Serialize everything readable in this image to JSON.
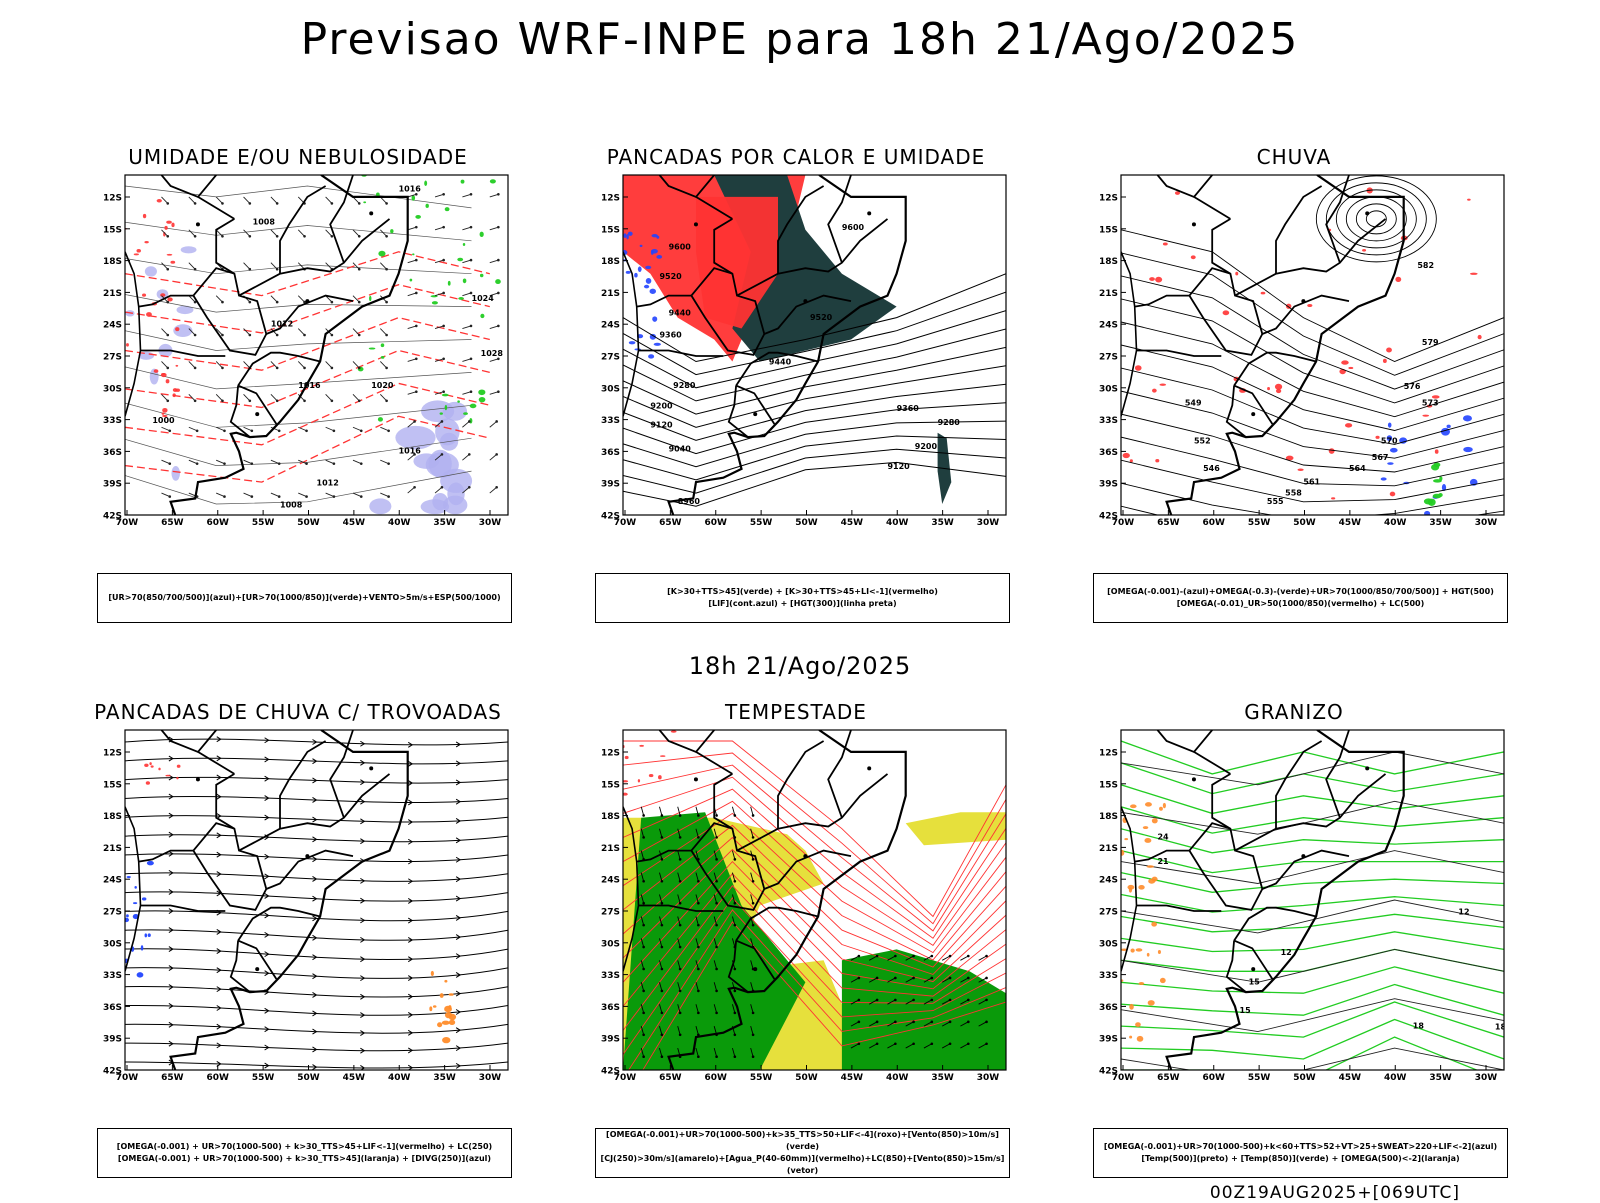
{
  "header": {
    "title": "Previsao WRF-INPE  para 18h 21/Ago/2025"
  },
  "middle": {
    "title": "18h 21/Ago/2025"
  },
  "footer": {
    "run": "00Z19AUG2025+[069UTC]"
  },
  "axes": {
    "lat_labels": [
      "12S",
      "15S",
      "18S",
      "21S",
      "24S",
      "27S",
      "30S",
      "33S",
      "36S",
      "39S",
      "42S"
    ],
    "lon_labels": [
      "70W",
      "65W",
      "60W",
      "55W",
      "50W",
      "45W",
      "40W",
      "35W",
      "30W"
    ]
  },
  "panels": [
    {
      "title": "UMIDADE E/OU NEBULOSIDADE",
      "caption": [
        "[UR>70(850/700/500)](azul)+[UR>70(1000/850)](verde)+VENTO>5m/s+ESP(500/1000)"
      ],
      "contour_labels": [
        "1008",
        "1016",
        "1024",
        "1012",
        "1016",
        "1020",
        "1016",
        "1012",
        "1008",
        "1000",
        "1028"
      ]
    },
    {
      "title": "PANCADAS POR CALOR E UMIDADE",
      "caption": [
        "[K>30+TTS>45](verde) + [K>30+TTS>45+LI<-1](vermelho)",
        "[LIF](cont.azul) + [HGT(300)](linha preta)"
      ],
      "contour_labels": [
        "9600",
        "9520",
        "9440",
        "9360",
        "9280",
        "9200",
        "9120",
        "9040",
        "8960",
        "9600",
        "9520",
        "9440",
        "9360",
        "9280",
        "9200",
        "9120"
      ]
    },
    {
      "title": "CHUVA",
      "caption": [
        "[OMEGA(-0.001)-(azul)+OMEGA(-0.3)-(verde)+UR>70(1000/850/700/500)] + HGT(500)",
        "[OMEGA(-0.01)_UR>50(1000/850)(vermelho) + LC(500)"
      ],
      "contour_labels": [
        "582",
        "579",
        "576",
        "573",
        "570",
        "567",
        "564",
        "561",
        "558",
        "555",
        "552",
        "549",
        "546"
      ]
    },
    {
      "title": "PANCADAS DE CHUVA C/ TROVOADAS",
      "caption": [
        "[OMEGA(-0.001) + UR>70(1000-500) + k>30_TTS>45+LIF<-1](vermelho) + LC(250)",
        "[OMEGA(-0.001) + UR>70(1000-500) + k>30_TTS>45](laranja) + [DIVG(250)](azul)"
      ],
      "contour_labels": []
    },
    {
      "title": "TEMPESTADE",
      "caption": [
        "[OMEGA(-0.001)+UR>70(1000-500)+k>35_TTS>50+LIF<-4](roxo)+[Vento(850)>10m/s](verde)",
        "[CJ(250)>30m/s](amarelo)+[Agua_P(40-60mm)](vermelho)+LC(850)+[Vento(850)>15m/s](vetor)"
      ],
      "contour_labels": []
    },
    {
      "title": "GRANIZO",
      "caption": [
        "[OMEGA(-0.001)+UR>70(1000-500)+k<60+TTS>52+VT>25+SWEAT>220+LIF<-2](azul)",
        "[Temp(500)](preto) + [Temp(850)](verde) + [OMEGA(500)<-2](laranja)"
      ],
      "contour_labels": [
        "12",
        "12",
        "15",
        "15",
        "18",
        "18",
        "21",
        "24"
      ]
    }
  ],
  "colors": {
    "red": "#ff3333",
    "green": "#22cc22",
    "blue": "#2244ff",
    "lightblue": "#b0b0f0",
    "darkteal": "#1f3e3e",
    "yellow": "#e6e03c",
    "orange": "#ff8c2a",
    "dkgreen": "#0a9a0a"
  }
}
